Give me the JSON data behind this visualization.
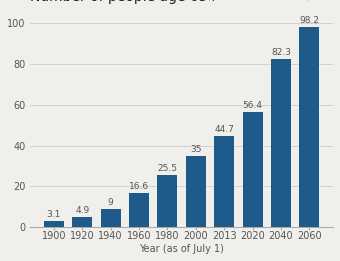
{
  "categories": [
    "1900",
    "1920",
    "1940",
    "1960",
    "1980",
    "2000",
    "2013",
    "2020",
    "2040",
    "2060"
  ],
  "values": [
    3.1,
    4.9,
    9,
    16.6,
    25.5,
    35,
    44.7,
    56.4,
    82.3,
    98.2
  ],
  "bar_color": "#1e5a8a",
  "xlabel": "Year (as of July 1)",
  "ylim": [
    0,
    108
  ],
  "yticks": [
    0,
    20,
    40,
    60,
    80,
    100
  ],
  "background_color": "#f0efeb",
  "plot_bg_color": "#ffffff",
  "title_fontsize": 10,
  "subtitle_fontsize": 7,
  "label_fontsize": 6.5,
  "xlabel_fontsize": 7,
  "tick_fontsize": 7,
  "grid_color": "#cccccc",
  "text_color": "#555555"
}
